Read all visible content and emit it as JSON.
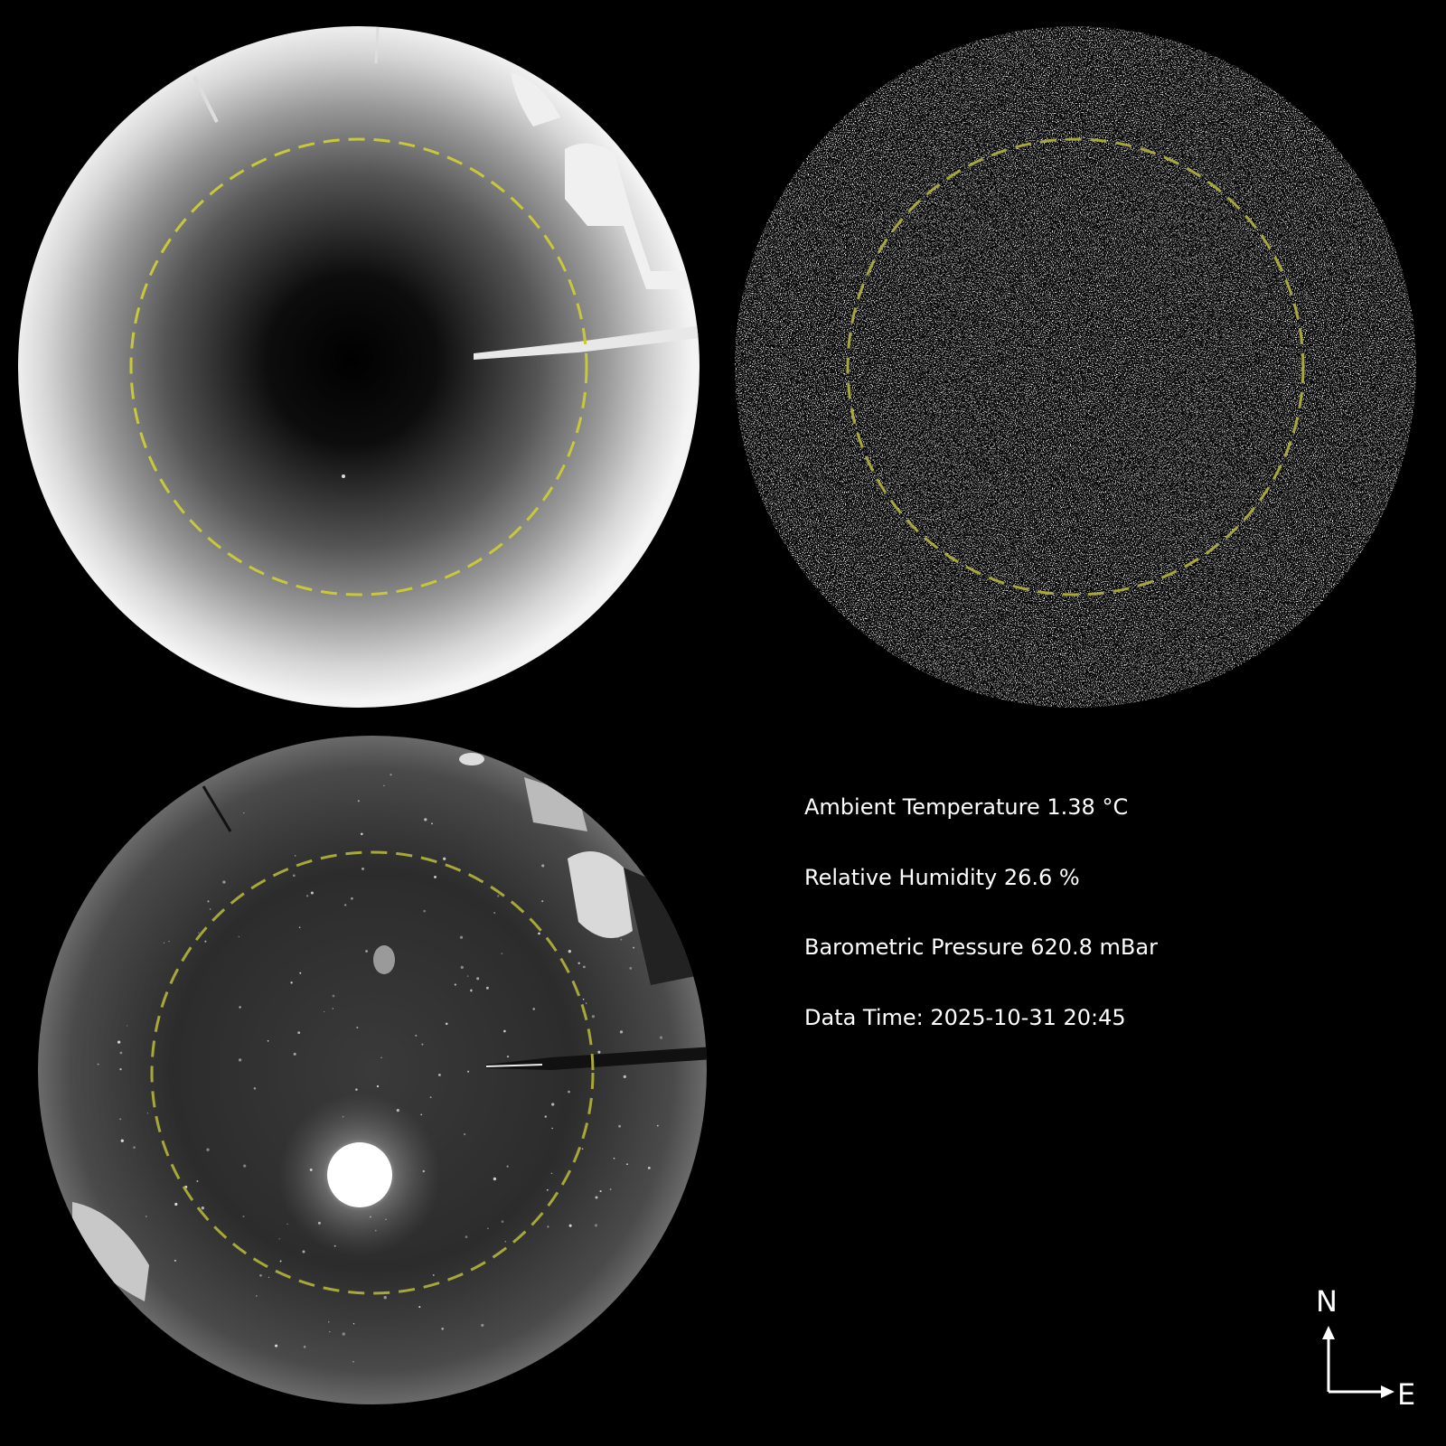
{
  "panels": [
    {
      "name": "sky-camera-top-left",
      "mode": "bright-vignette"
    },
    {
      "name": "sky-camera-top-right",
      "mode": "noise-mask"
    },
    {
      "name": "sky-camera-bottom-left",
      "mode": "night-sky-with-moon"
    }
  ],
  "colors": {
    "background": "#000000",
    "ring": "#c8c83a",
    "text": "#ffffff"
  },
  "readings": {
    "temperature": "Ambient Temperature 1.38 °C",
    "humidity": "Relative Humidity 26.6 %",
    "pressure": "Barometric Pressure 620.8 mBar",
    "time": "Data Time: 2025-10-31 20:45"
  },
  "compass": {
    "north": "N",
    "east": "E"
  }
}
